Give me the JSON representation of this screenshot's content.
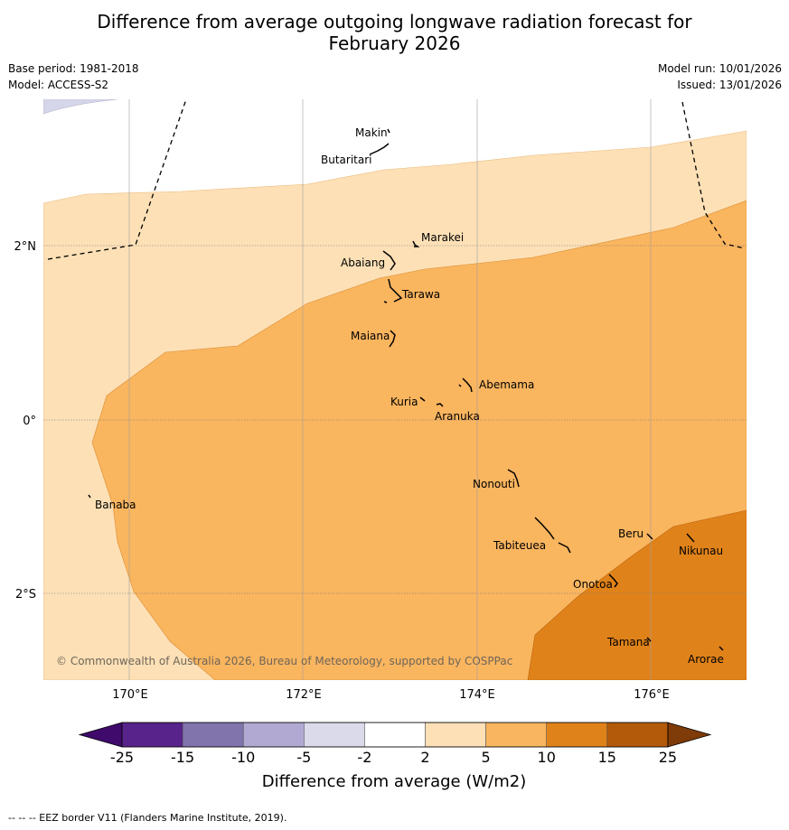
{
  "title_line1": "Difference from average outgoing longwave radiation forecast for",
  "title_line2": "February 2026",
  "base_period": "Base period: 1981-2018",
  "model": "Model: ACCESS-S2",
  "model_run": "Model run: 10/01/2026",
  "issued": "Issued: 13/01/2026",
  "lat_labels": [
    "2°N",
    "0°",
    "2°S"
  ],
  "lon_labels": [
    "170°E",
    "172°E",
    "174°E",
    "176°E"
  ],
  "islands": [
    "Makin",
    "Butaritari",
    "Marakei",
    "Abaiang",
    "Tarawa",
    "Maiana",
    "Abemama",
    "Kuria",
    "Aranuka",
    "Nonouti",
    "Banaba",
    "Beru",
    "Nikunau",
    "Tabiteuea",
    "Onotoa",
    "Tamana",
    "Arorae"
  ],
  "copyright": "© Commonwealth of Australia 2026, Bureau of Meteorology, supported by COSPPac",
  "legend": {
    "ticks": [
      "-25",
      "-15",
      "-10",
      "-5",
      "-2",
      "2",
      "5",
      "10",
      "15",
      "25"
    ],
    "colors": [
      "#3f0a6b",
      "#58238a",
      "#8174ad",
      "#b1a9d2",
      "#dadaeb",
      "#ffffff",
      "#fde0b6",
      "#f9b55f",
      "#e0821a",
      "#b25a0a",
      "#7f3b08"
    ],
    "label": "Difference from average (W/m2)"
  },
  "footnote": "--  --  -- EEZ border V11 (Flanders Marine Institute, 2019).",
  "colors": {
    "pale_purple": "#d5d6ea",
    "light_orange": "#fde0b6",
    "mid_orange": "#fab55f",
    "dark_orange": "#e0821a"
  }
}
